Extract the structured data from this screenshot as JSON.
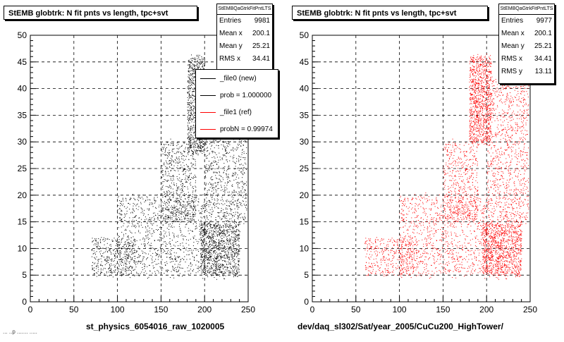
{
  "chart_data": [
    {
      "type": "scatter",
      "title": "StEMB globtrk: N fit pnts vs length, tpc+svt",
      "xlabel": "st_physics_6054016_raw_1020005",
      "xlim": [
        0,
        250
      ],
      "ylim": [
        0,
        50
      ],
      "x_ticks": [
        "0",
        "50",
        "100",
        "150",
        "200",
        "250"
      ],
      "y_ticks": [
        "0",
        "5",
        "10",
        "15",
        "20",
        "25",
        "30",
        "35",
        "40",
        "45",
        "50"
      ],
      "grid": true,
      "color": "#000000",
      "stats": {
        "name": "StEMBQaGtrkFitPntLTS",
        "rows": [
          {
            "label": "Entries",
            "value": "9981"
          },
          {
            "label": "Mean x",
            "value": "200.1"
          },
          {
            "label": "Mean y",
            "value": "25.21"
          },
          {
            "label": "RMS x",
            "value": "34.41"
          }
        ]
      },
      "legend": [
        {
          "label": "_file0 (new)",
          "color": "#000000"
        },
        {
          "label": "prob = 1.000000",
          "color": "#000000"
        },
        {
          "label": "_file1 (ref)",
          "color": "#ff0000"
        },
        {
          "label": "probN = 0.99974",
          "color": "#ff0000"
        }
      ],
      "density_regions": [
        {
          "x": [
            180,
            200
          ],
          "y": [
            28,
            46
          ],
          "weight": 0.18
        },
        {
          "x": [
            195,
            240
          ],
          "y": [
            5,
            15
          ],
          "weight": 0.22
        },
        {
          "x": [
            200,
            248
          ],
          "y": [
            15,
            40
          ],
          "weight": 0.2
        },
        {
          "x": [
            100,
            200
          ],
          "y": [
            5,
            20
          ],
          "weight": 0.2
        },
        {
          "x": [
            70,
            120
          ],
          "y": [
            5,
            12
          ],
          "weight": 0.08
        },
        {
          "x": [
            150,
            190
          ],
          "y": [
            15,
            30
          ],
          "weight": 0.12
        }
      ]
    },
    {
      "type": "scatter",
      "title": "StEMB globtrk: N fit pnts vs length, tpc+svt",
      "xlabel": "dev/daq_sl302/Sat/year_2005/CuCu200_HighTower/",
      "xlim": [
        0,
        250
      ],
      "ylim": [
        0,
        50
      ],
      "x_ticks": [
        "0",
        "50",
        "100",
        "150",
        "200",
        "250"
      ],
      "y_ticks": [
        "0",
        "5",
        "10",
        "15",
        "20",
        "25",
        "30",
        "35",
        "40",
        "45",
        "50"
      ],
      "grid": true,
      "color": "#ff0000",
      "stats": {
        "name": "StEMBQaGtrkFitPntLTS",
        "rows": [
          {
            "label": "Entries",
            "value": "9977"
          },
          {
            "label": "Mean x",
            "value": "200.1"
          },
          {
            "label": "Mean y",
            "value": "25.21"
          },
          {
            "label": "RMS x",
            "value": "34.41"
          },
          {
            "label": "RMS y",
            "value": "13.11"
          }
        ]
      },
      "density_regions": [
        {
          "x": [
            180,
            205
          ],
          "y": [
            30,
            46
          ],
          "weight": 0.2
        },
        {
          "x": [
            195,
            240
          ],
          "y": [
            5,
            15
          ],
          "weight": 0.22
        },
        {
          "x": [
            200,
            248
          ],
          "y": [
            15,
            42
          ],
          "weight": 0.2
        },
        {
          "x": [
            100,
            200
          ],
          "y": [
            5,
            20
          ],
          "weight": 0.2
        },
        {
          "x": [
            60,
            120
          ],
          "y": [
            5,
            12
          ],
          "weight": 0.08
        },
        {
          "x": [
            150,
            190
          ],
          "y": [
            15,
            30
          ],
          "weight": 0.1
        }
      ]
    }
  ],
  "footer_text": "... ..p ....... ....."
}
